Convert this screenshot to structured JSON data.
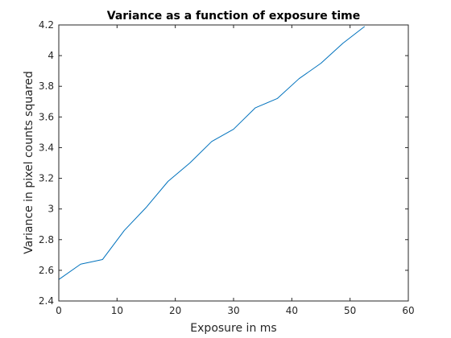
{
  "chart_data": {
    "type": "line",
    "title": "Variance as a function of exposure time",
    "xlabel": "Exposure in ms",
    "ylabel": "Variance in pixel counts squared",
    "xlim": [
      0,
      60
    ],
    "ylim": [
      2.4,
      4.2
    ],
    "xticks": [
      0,
      10,
      20,
      30,
      40,
      50,
      60
    ],
    "yticks": [
      2.4,
      2.6,
      2.8,
      3,
      3.2,
      3.4,
      3.6,
      3.8,
      4,
      4.2
    ],
    "xtick_labels": [
      "0",
      "10",
      "20",
      "30",
      "40",
      "50",
      "60"
    ],
    "ytick_labels": [
      "2.4",
      "2.6",
      "2.8",
      "3",
      "3.2",
      "3.4",
      "3.6",
      "3.8",
      "4",
      "4.2"
    ],
    "grid": false,
    "series": [
      {
        "color": "#0072bd",
        "x": [
          0,
          3.75,
          7.5,
          11.25,
          15,
          18.75,
          22.5,
          26.25,
          30,
          33.75,
          37.5,
          41.25,
          45,
          48.75,
          52.5
        ],
        "y": [
          2.54,
          2.64,
          2.67,
          2.86,
          3.01,
          3.18,
          3.3,
          3.44,
          3.52,
          3.66,
          3.72,
          3.85,
          3.95,
          4.08,
          4.19
        ]
      }
    ]
  }
}
